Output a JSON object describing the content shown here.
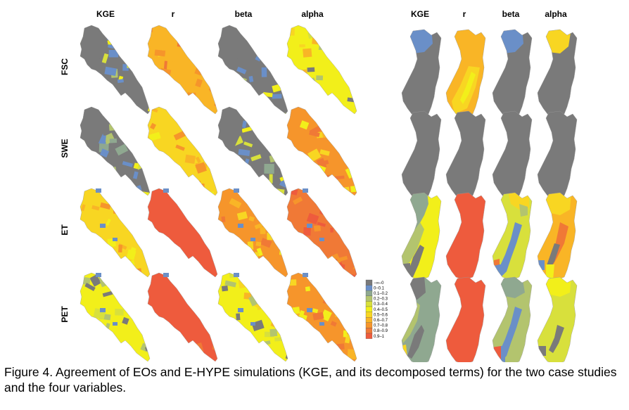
{
  "figure": {
    "case_left": {
      "columns": [
        "KGE",
        "r",
        "beta",
        "alpha"
      ],
      "cells": [
        [
          "partial-blue",
          "orange",
          "partial-blue",
          "yellow-mix"
        ],
        [
          "partial-blue",
          "yellow-orange",
          "partial-blue",
          "orange-mix"
        ],
        [
          "yellow-orange",
          "red",
          "orange-mix",
          "red-orange"
        ],
        [
          "yellow-mix",
          "red",
          "yellow-mix",
          "orange-mix"
        ]
      ]
    },
    "case_right": {
      "columns": [
        "KGE",
        "r",
        "beta",
        "alpha"
      ],
      "cells": [
        [
          "blue-gray",
          "orange-yellow",
          "blue-gray",
          "yellow-gray"
        ],
        [
          "gray",
          "gray",
          "gray",
          "gray"
        ],
        [
          "green-yellow",
          "red",
          "yellow-blue",
          "orange-yellow"
        ],
        [
          "gray-green",
          "red",
          "green-blue",
          "yellow"
        ]
      ]
    },
    "rows": [
      "FSC",
      "SWE",
      "ET",
      "PET"
    ],
    "legend": {
      "items": [
        {
          "label": "−∞–0",
          "color": "#7a7a7a"
        },
        {
          "label": "0–0.1",
          "color": "#6a8fc8"
        },
        {
          "label": "0.1–0.2",
          "color": "#8fa890"
        },
        {
          "label": "0.2–0.3",
          "color": "#b3c46e"
        },
        {
          "label": "0.3–0.4",
          "color": "#d8e03c"
        },
        {
          "label": "0.4–0.5",
          "color": "#f2ef1a"
        },
        {
          "label": "0.5–0.6",
          "color": "#f8d622"
        },
        {
          "label": "0.6–0.7",
          "color": "#f9b526"
        },
        {
          "label": "0.7–0.8",
          "color": "#f6952b"
        },
        {
          "label": "0.8–0.9",
          "color": "#f07936"
        },
        {
          "label": "0.9–1",
          "color": "#ee5b3d"
        }
      ]
    }
  },
  "caption": "Figure 4. Agreement of EOs and E-HYPE simulations (KGE, and its decomposed terms) for the two case studies and the four variables."
}
